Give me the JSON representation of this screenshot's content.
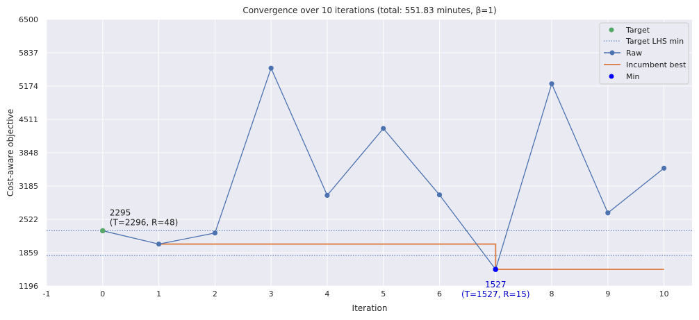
{
  "chart_data": {
    "type": "line",
    "title": "Convergence over 10 iterations (total: 551.83 minutes, β=1)",
    "xlabel": "Iteration",
    "ylabel": "Cost-aware objective",
    "xlim": [
      -1,
      10.5
    ],
    "ylim": [
      1196,
      6500
    ],
    "x_ticks": [
      "-1",
      "0",
      "1",
      "2",
      "3",
      "4",
      "5",
      "6",
      "7",
      "8",
      "9",
      "10"
    ],
    "y_ticks": [
      "1196",
      "1859",
      "2522",
      "3185",
      "3848",
      "4511",
      "5174",
      "5837",
      "6500"
    ],
    "grid": true,
    "legend_position": "top-right",
    "colors": {
      "background": "#eaeaf2",
      "grid": "#ffffff",
      "raw": "#4c72b0",
      "incumbent": "#dd8452",
      "target": "#55a868",
      "min": "#0000ff",
      "target_lines": "#4c72b0"
    },
    "legend": [
      "Target",
      "Target LHS min",
      "Raw",
      "Incumbent best",
      "Min"
    ],
    "target_lhs_lines": [
      2295,
      1800
    ],
    "raw": {
      "x": [
        1,
        2,
        3,
        4,
        5,
        6,
        7,
        8,
        9,
        10
      ],
      "y": [
        2030,
        2250,
        5530,
        3000,
        4330,
        3010,
        1527,
        5220,
        2650,
        3540
      ]
    },
    "incumbent": {
      "x": [
        1,
        2,
        3,
        4,
        5,
        6,
        7,
        8,
        9,
        10
      ],
      "y": [
        2030,
        2030,
        2030,
        2030,
        2030,
        2030,
        1527,
        1527,
        1527,
        1527
      ]
    },
    "target_point": {
      "x": 0,
      "y": 2295
    },
    "min_point": {
      "x": 7,
      "y": 1527
    },
    "annotations": {
      "target_value": "2295",
      "target_detail": "(T=2296, R=48)",
      "min_value": "1527",
      "min_detail": "(T=1527, R=15)"
    }
  }
}
